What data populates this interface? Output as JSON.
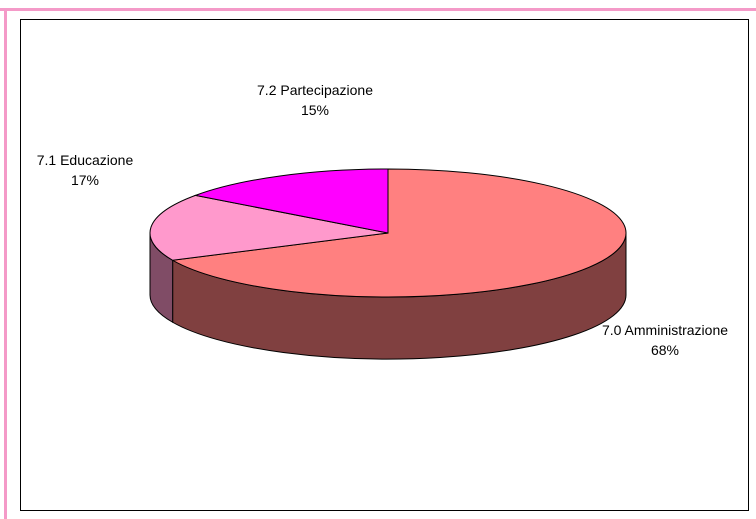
{
  "chart_data": {
    "type": "pie",
    "categories": [
      "7.0 Amministrazione",
      "7.1 Educazione",
      "7.2 Partecipazione"
    ],
    "values": [
      68,
      17,
      15
    ],
    "value_labels": [
      "68%",
      "17%",
      "15%"
    ],
    "colors": [
      "#ff8080",
      "#ff99cc",
      "#ff00ff"
    ],
    "side_colors": [
      "#804040",
      "#804c66",
      "#800080"
    ]
  }
}
